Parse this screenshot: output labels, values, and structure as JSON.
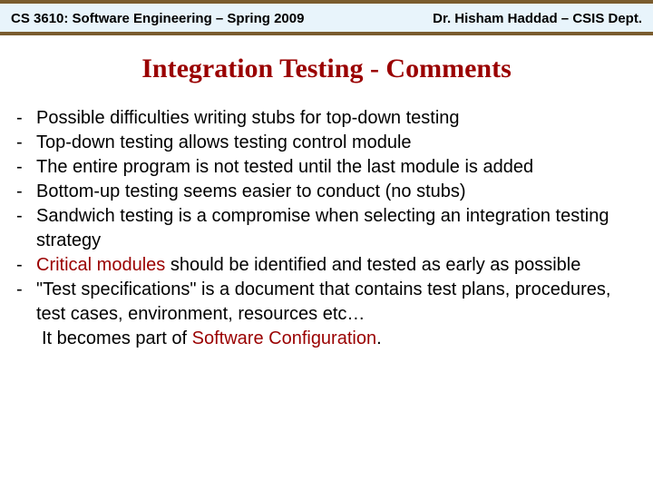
{
  "colors": {
    "header_bg": "#e8f4fb",
    "header_border": "#7a5c2e",
    "title_color": "#9a0000",
    "highlight_color": "#9a0000",
    "text_color": "#000000"
  },
  "header": {
    "left": "CS 3610: Software Engineering – Spring 2009",
    "right": "Dr. Hisham Haddad – CSIS Dept."
  },
  "title": "Integration Testing - Comments",
  "bullets": {
    "b1": "Possible difficulties writing stubs for top-down testing",
    "b2": "Top-down testing allows testing control module",
    "b3": "The entire program is not tested until the last module is added",
    "b4": "Bottom-up testing seems easier to conduct (no stubs)",
    "b5": "Sandwich testing is a compromise when selecting an integration testing strategy",
    "b6a": "Critical modules",
    "b6b": " should be identified and tested as early as possible",
    "b7a": "\"Test specifications\" is a document that contains test plans, procedures, test cases, environment, resources etc…",
    "b7b_pre": " It becomes part of ",
    "b7b_hl": "Software Configuration",
    "b7b_post": "."
  },
  "dash": "-"
}
